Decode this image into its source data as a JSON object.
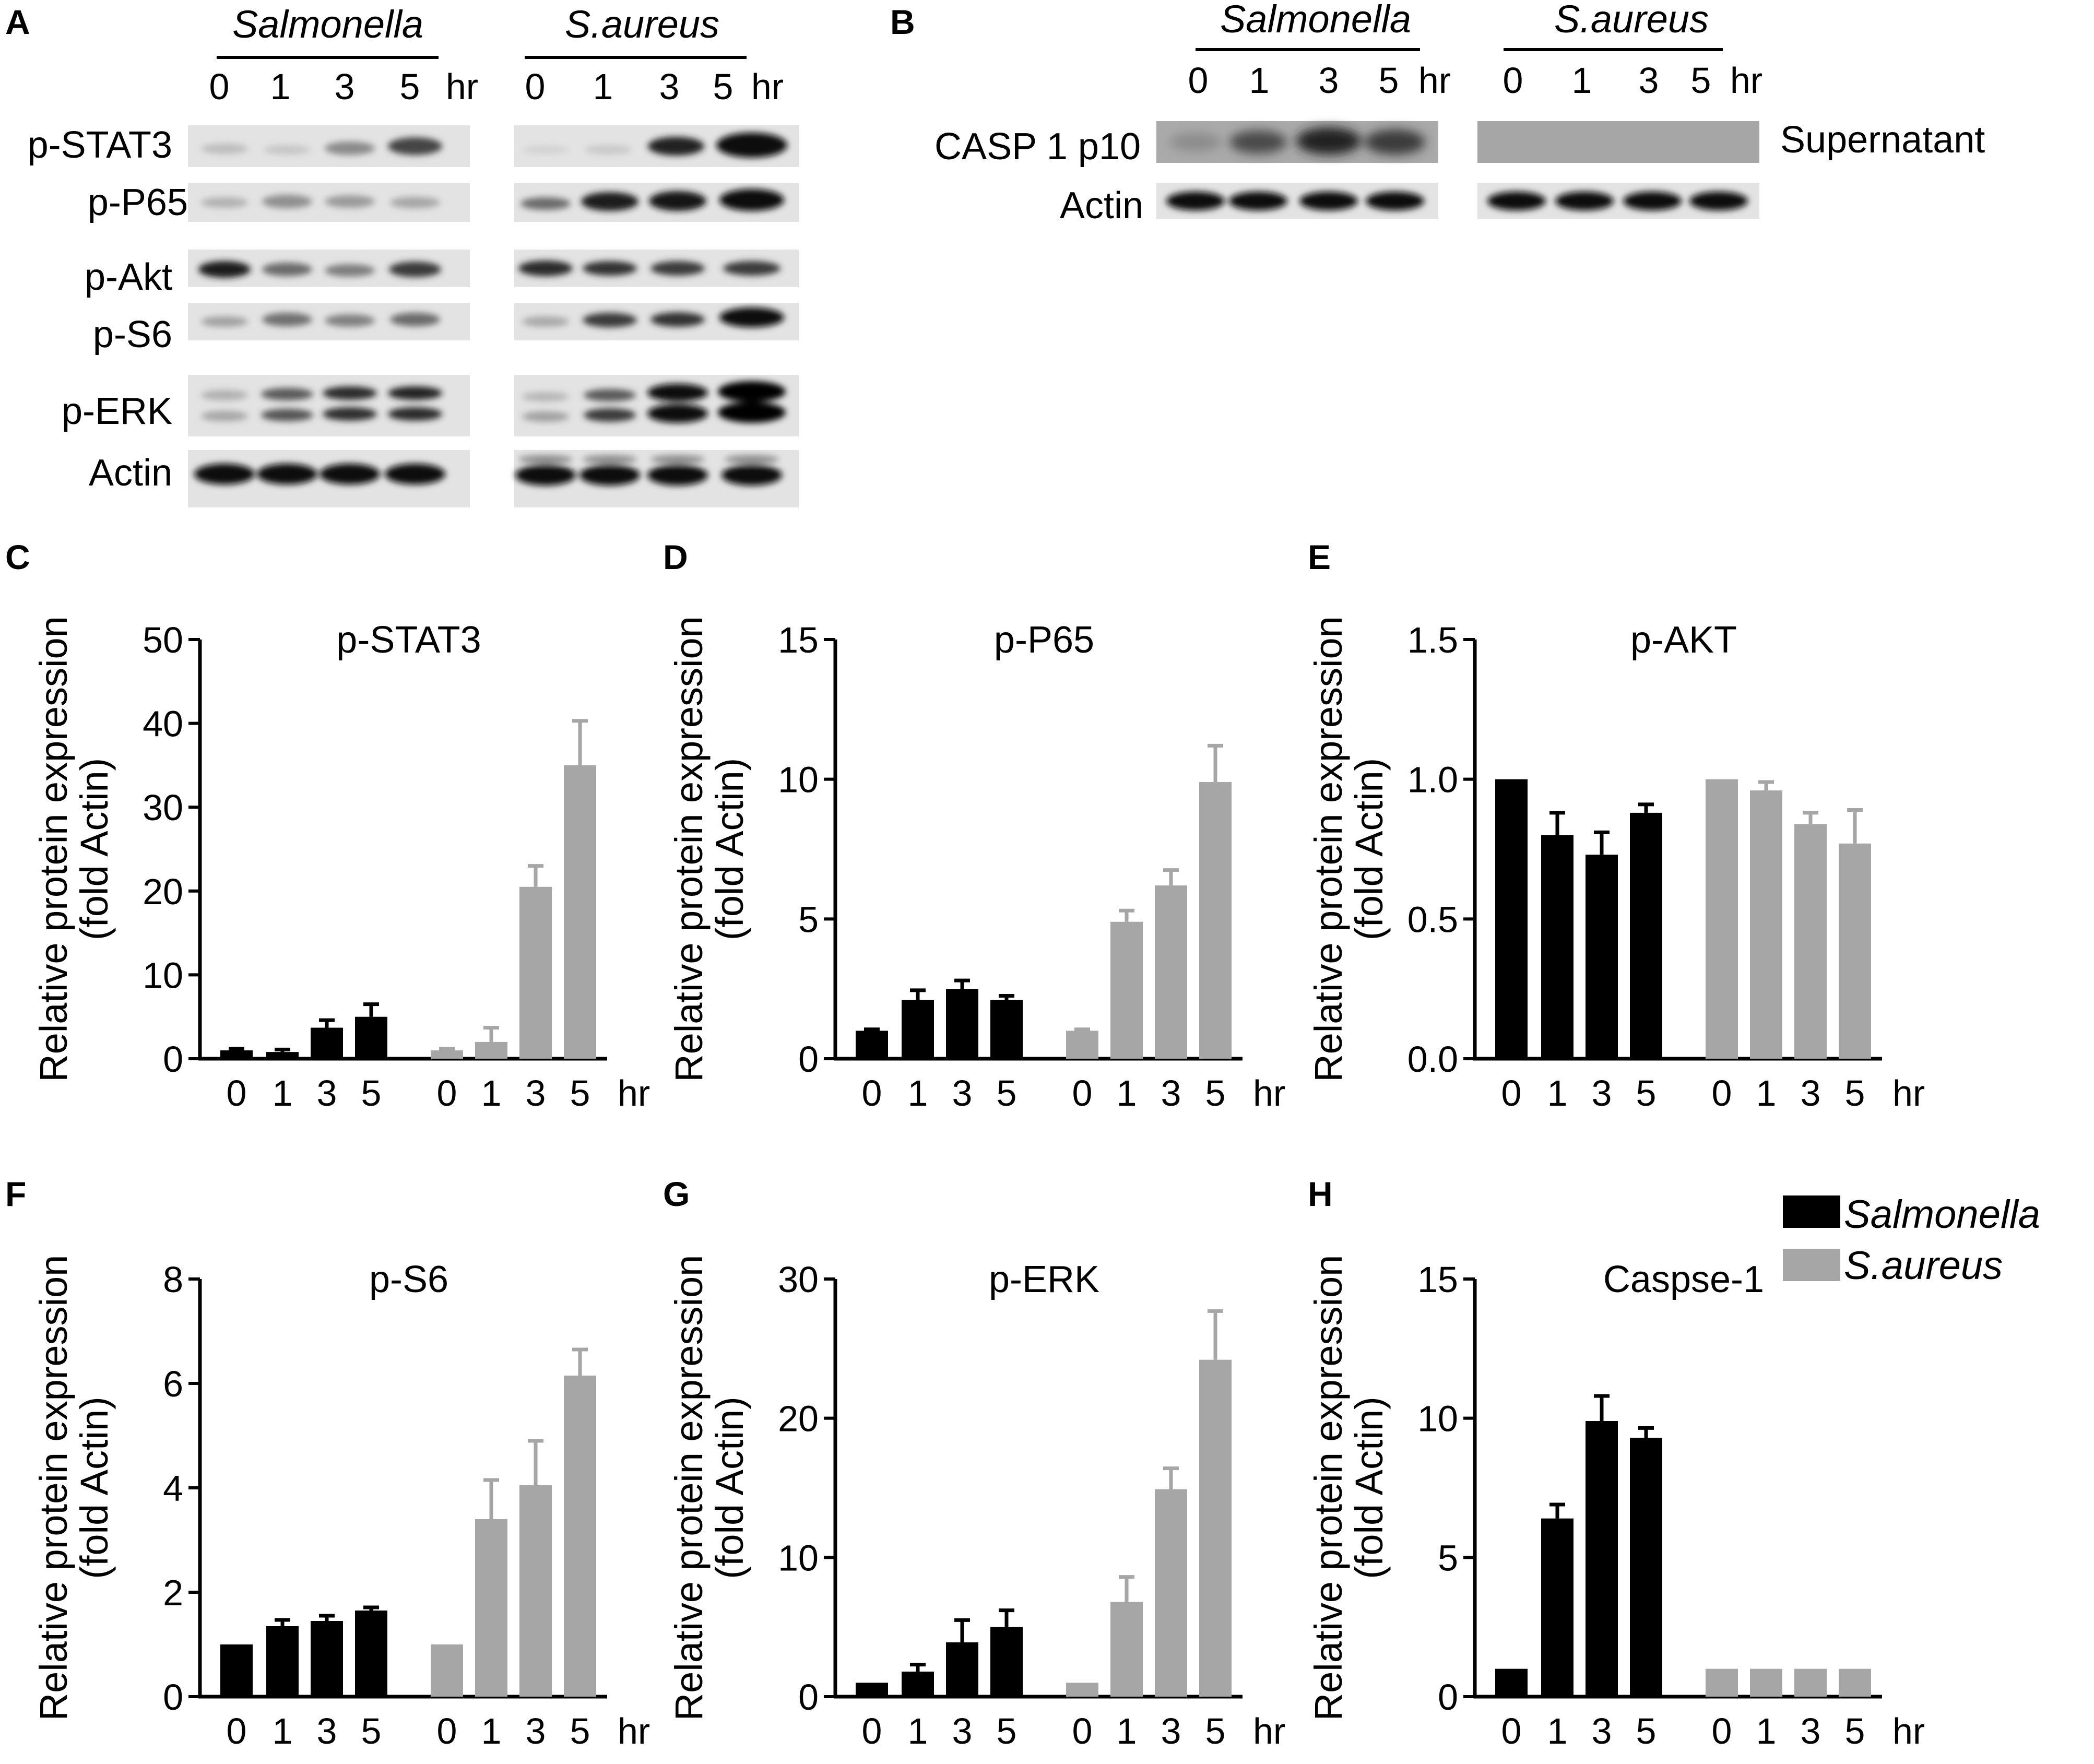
{
  "colors": {
    "salmonella": "#000000",
    "saureus": "#a6a6a6",
    "axis": "#000000"
  },
  "blots": {
    "panel_a": {
      "letter": "A",
      "groups": [
        "Salmonella",
        "S.aureus"
      ],
      "lanes": [
        "0",
        "1",
        "3",
        "5"
      ],
      "unit": "hr",
      "rows": [
        "p-STAT3",
        "p-P65",
        "p-Akt",
        "p-S6",
        "p-ERK",
        "Actin"
      ]
    },
    "panel_b": {
      "letter": "B",
      "groups": [
        "Salmonella",
        "S.aureus"
      ],
      "lanes": [
        "0",
        "1",
        "3",
        "5"
      ],
      "unit": "hr",
      "rows": [
        "CASP 1 p10",
        "Actin"
      ],
      "side_label": "Supernatant"
    }
  },
  "chart_data": [
    {
      "letter": "C",
      "type": "bar",
      "title": "p-STAT3",
      "ylabel": "Relative protein expression (fold Actin)",
      "categories": [
        "0",
        "1",
        "3",
        "5"
      ],
      "unit": "hr",
      "ylim": [
        0,
        50
      ],
      "yticks": [
        "0",
        "10",
        "20",
        "30",
        "40",
        "50"
      ],
      "series": [
        {
          "name": "Salmonella",
          "values": [
            1.0,
            0.8,
            3.7,
            5.0
          ],
          "errors": [
            0.2,
            0.3,
            0.9,
            1.5
          ]
        },
        {
          "name": "S.aureus",
          "values": [
            1.0,
            2.0,
            20.5,
            35.0
          ],
          "errors": [
            0.2,
            1.7,
            2.5,
            5.3
          ]
        }
      ]
    },
    {
      "letter": "D",
      "type": "bar",
      "title": "p-P65",
      "ylabel": "Relative protein expression (fold Actin)",
      "categories": [
        "0",
        "1",
        "3",
        "5"
      ],
      "unit": "hr",
      "ylim": [
        0,
        15
      ],
      "yticks": [
        "0",
        "5",
        "10",
        "15"
      ],
      "series": [
        {
          "name": "Salmonella",
          "values": [
            1.0,
            2.1,
            2.5,
            2.1
          ],
          "errors": [
            0.05,
            0.35,
            0.3,
            0.15
          ]
        },
        {
          "name": "S.aureus",
          "values": [
            1.0,
            4.9,
            6.2,
            9.9
          ],
          "errors": [
            0.05,
            0.4,
            0.55,
            1.3
          ]
        }
      ]
    },
    {
      "letter": "E",
      "type": "bar",
      "title": "p-AKT",
      "ylabel": "Relative protein expression (fold Actin)",
      "categories": [
        "0",
        "1",
        "3",
        "5"
      ],
      "unit": "hr",
      "ylim": [
        0,
        1.5
      ],
      "yticks": [
        "0.0",
        "0.5",
        "1.0",
        "1.5"
      ],
      "series": [
        {
          "name": "Salmonella",
          "values": [
            1.0,
            0.8,
            0.73,
            0.88
          ],
          "errors": [
            0.0,
            0.08,
            0.08,
            0.03
          ]
        },
        {
          "name": "S.aureus",
          "values": [
            1.0,
            0.96,
            0.84,
            0.77
          ],
          "errors": [
            0.0,
            0.03,
            0.04,
            0.12
          ]
        }
      ]
    },
    {
      "letter": "F",
      "type": "bar",
      "title": "p-S6",
      "ylabel": "Relative protein expression (fold Actin)",
      "categories": [
        "0",
        "1",
        "3",
        "5"
      ],
      "unit": "hr",
      "ylim": [
        0,
        8
      ],
      "yticks": [
        "0",
        "2",
        "4",
        "6",
        "8"
      ],
      "series": [
        {
          "name": "Salmonella",
          "values": [
            1.0,
            1.35,
            1.45,
            1.65
          ],
          "errors": [
            0.0,
            0.12,
            0.1,
            0.06
          ]
        },
        {
          "name": "S.aureus",
          "values": [
            1.0,
            3.4,
            4.05,
            6.15
          ],
          "errors": [
            0.0,
            0.75,
            0.85,
            0.5
          ]
        }
      ]
    },
    {
      "letter": "G",
      "type": "bar",
      "title": "p-ERK",
      "ylabel": "Relative protein expression (fold Actin)",
      "categories": [
        "0",
        "1",
        "3",
        "5"
      ],
      "unit": "hr",
      "ylim": [
        0,
        30
      ],
      "yticks": [
        "0",
        "10",
        "20",
        "30"
      ],
      "series": [
        {
          "name": "Salmonella",
          "values": [
            1.0,
            1.8,
            3.9,
            5.0
          ],
          "errors": [
            0.0,
            0.5,
            1.6,
            1.2
          ]
        },
        {
          "name": "S.aureus",
          "values": [
            1.0,
            6.8,
            14.9,
            24.2
          ],
          "errors": [
            0.0,
            1.8,
            1.5,
            3.5
          ]
        }
      ]
    },
    {
      "letter": "H",
      "type": "bar",
      "title": "Caspse-1",
      "ylabel": "Relative protein expression (fold Actin)",
      "categories": [
        "0",
        "1",
        "3",
        "5"
      ],
      "unit": "hr",
      "ylim": [
        0,
        15
      ],
      "yticks": [
        "0",
        "5",
        "10",
        "15"
      ],
      "series": [
        {
          "name": "Salmonella",
          "values": [
            1.0,
            6.4,
            9.9,
            9.3
          ],
          "errors": [
            0.0,
            0.5,
            0.9,
            0.35
          ]
        },
        {
          "name": "S.aureus",
          "values": [
            1.0,
            1.0,
            1.0,
            1.0
          ],
          "errors": [
            0.0,
            0.0,
            0.0,
            0.0
          ]
        }
      ],
      "legend": [
        "Salmonella",
        "S.aureus"
      ],
      "legend_position": "top-right"
    }
  ]
}
